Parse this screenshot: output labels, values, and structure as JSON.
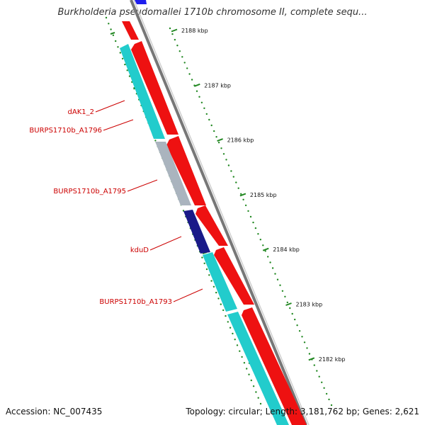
{
  "title": "Burkholderia pseudomallei 1710b chromosome II, complete sequ...",
  "footer": {
    "accession": "Accession: NC_007435",
    "summary": "Topology: circular; Length: 3,181,762 bp; Genes: 2,621"
  },
  "colors": {
    "forward_cds": "#ee1111",
    "reverse_cds": "#22cccc",
    "kdud": "#1a1a88",
    "pseudo": "#aab4be",
    "backbone": "#777777",
    "tick": "#228822",
    "label": "#cc0000"
  },
  "ticks": [
    {
      "label": "2188 kbp"
    },
    {
      "label": "2187 kbp"
    },
    {
      "label": "2186 kbp"
    },
    {
      "label": "2185 kbp"
    },
    {
      "label": "2184 kbp"
    },
    {
      "label": "2183 kbp"
    },
    {
      "label": "2182 kbp"
    }
  ],
  "gene_labels": [
    {
      "label": "dAK1_2"
    },
    {
      "label": "BURPS1710b_A1796"
    },
    {
      "label": "BURPS1710b_A1795"
    },
    {
      "label": "kduD"
    },
    {
      "label": "BURPS1710b_A1793"
    }
  ]
}
